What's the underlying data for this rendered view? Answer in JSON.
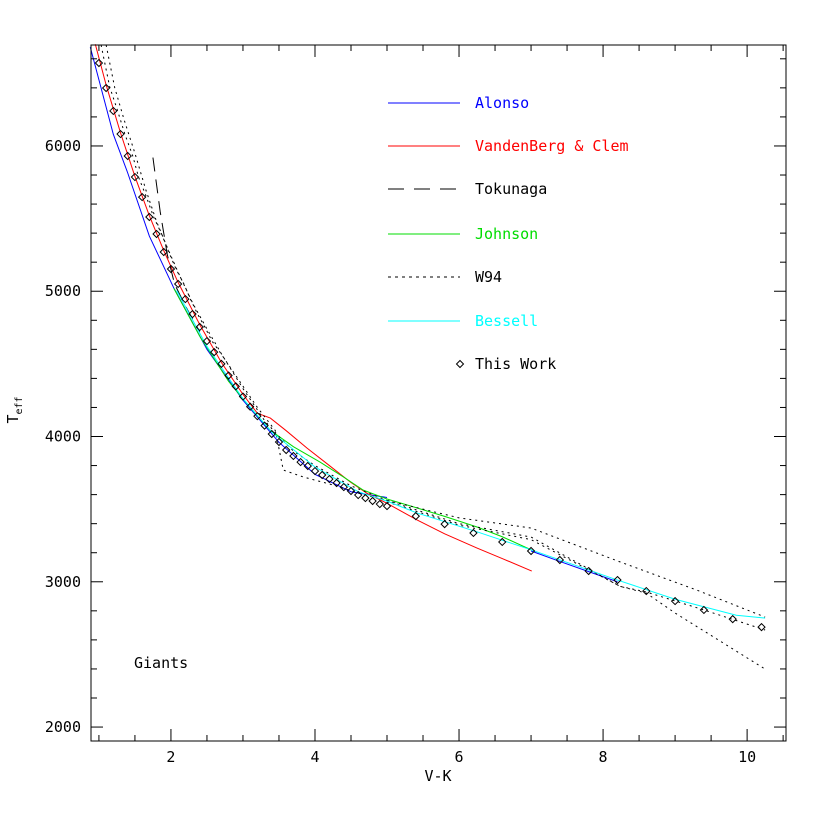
{
  "chart_data": {
    "type": "line",
    "title": "",
    "xlabel": "V-K",
    "ylabel": "T",
    "ylabel_sub": "eff",
    "annotation": "Giants",
    "xlim": [
      0.89,
      10.54
    ],
    "ylim": [
      1904,
      6695
    ],
    "x_ticks": [
      "2",
      "4",
      "6",
      "8",
      "10"
    ],
    "y_ticks": [
      "2000",
      "3000",
      "4000",
      "5000",
      "6000"
    ],
    "grid": false,
    "legend_position": "top-right",
    "series": [
      {
        "name": "Alonso",
        "color": "#0000ff",
        "style": "solid",
        "segments": [
          [
            [
              0.88,
              6680
            ],
            [
              1.2,
              6080
            ],
            [
              1.4,
              5814
            ],
            [
              1.7,
              5380
            ],
            [
              2.04,
              5022
            ],
            [
              2.5,
              4600
            ],
            [
              3.0,
              4250
            ],
            [
              3.5,
              3960
            ],
            [
              4.0,
              3740
            ],
            [
              4.5,
              3620
            ],
            [
              5.0,
              3580
            ]
          ],
          [
            [
              7.0,
              3212
            ],
            [
              7.4,
              3140
            ],
            [
              7.8,
              3070
            ],
            [
              8.2,
              3000
            ]
          ]
        ]
      },
      {
        "name": "VandenBerg & Clem",
        "color": "#ff0000",
        "style": "solid",
        "segments": [
          [
            [
              0.95,
              6700
            ],
            [
              1.1,
              6420
            ],
            [
              1.3,
              6090
            ],
            [
              1.5,
              5790
            ],
            [
              1.7,
              5520
            ],
            [
              1.9,
              5280
            ],
            [
              2.1,
              5060
            ],
            [
              2.4,
              4770
            ],
            [
              2.7,
              4510
            ],
            [
              3.0,
              4290
            ],
            [
              3.2,
              4160
            ],
            [
              3.38,
              4127
            ],
            [
              3.6,
              4040
            ],
            [
              3.89,
              3920
            ],
            [
              4.2,
              3800
            ],
            [
              4.49,
              3687
            ],
            [
              4.72,
              3610
            ],
            [
              5.0,
              3540
            ],
            [
              5.42,
              3425
            ],
            [
              5.8,
              3330
            ],
            [
              6.25,
              3232
            ],
            [
              6.6,
              3160
            ],
            [
              7.01,
              3074
            ]
          ]
        ]
      },
      {
        "name": "Tokunaga",
        "color": "#000000",
        "style": "dashed",
        "segments": [
          [
            [
              1.75,
              5920
            ],
            [
              1.85,
              5550
            ],
            [
              1.95,
              5250
            ],
            [
              2.05,
              5050
            ],
            [
              2.2,
              4900
            ],
            [
              2.4,
              4720
            ]
          ]
        ]
      },
      {
        "name": "Johnson",
        "color": "#00dd00",
        "style": "solid",
        "segments": [
          [
            [
              2.04,
              5020
            ],
            [
              2.4,
              4690
            ],
            [
              2.8,
              4380
            ],
            [
              3.1,
              4200
            ],
            [
              3.375,
              4045
            ],
            [
              3.7,
              3930
            ],
            [
              4.07,
              3824
            ],
            [
              4.4,
              3720
            ],
            [
              4.67,
              3631
            ],
            [
              5.0,
              3570
            ],
            [
              5.42,
              3508
            ],
            [
              5.8,
              3450
            ],
            [
              6.25,
              3377
            ],
            [
              6.6,
              3310
            ],
            [
              7.01,
              3218
            ]
          ]
        ]
      },
      {
        "name": "W94",
        "color": "#000000",
        "style": "dotted",
        "segments": [
          [
            [
              1.03,
              6695
            ],
            [
              1.15,
              6406
            ],
            [
              1.26,
              6241
            ],
            [
              1.36,
              6082
            ],
            [
              1.47,
              5931
            ],
            [
              1.55,
              5786
            ],
            [
              1.66,
              5648
            ],
            [
              1.76,
              5511
            ],
            [
              1.87,
              5394
            ],
            [
              1.97,
              5270
            ],
            [
              2.07,
              5153
            ],
            [
              2.18,
              5050
            ],
            [
              2.27,
              4946
            ],
            [
              2.37,
              4843
            ],
            [
              2.47,
              4754
            ],
            [
              2.57,
              4657
            ],
            [
              2.68,
              4581
            ],
            [
              2.9,
              4420
            ],
            [
              3.2,
              4200
            ],
            [
              3.45,
              4040
            ],
            [
              3.56,
              3769
            ],
            [
              3.84,
              3721
            ],
            [
              4.3,
              3660
            ],
            [
              4.6,
              3610
            ],
            [
              5.0,
              3560
            ],
            [
              6.0,
              3440
            ],
            [
              7.0,
              3370
            ],
            [
              8.24,
              3136
            ],
            [
              9.3,
              2943
            ],
            [
              10.25,
              2757
            ]
          ],
          [
            [
              1.1,
              6695
            ],
            [
              1.22,
              6400
            ],
            [
              1.35,
              6180
            ],
            [
              1.5,
              5950
            ],
            [
              1.65,
              5700
            ],
            [
              1.8,
              5480
            ],
            [
              1.95,
              5300
            ],
            [
              2.1,
              5130
            ],
            [
              2.3,
              4920
            ],
            [
              2.5,
              4740
            ],
            [
              2.7,
              4570
            ],
            [
              3.0,
              4330
            ],
            [
              3.3,
              4110
            ],
            [
              3.5,
              4000
            ],
            [
              3.7,
              3900
            ],
            [
              4.0,
              3800
            ],
            [
              4.5,
              3660
            ],
            [
              5.0,
              3560
            ],
            [
              6.0,
              3400
            ],
            [
              7.0,
              3308
            ],
            [
              8.24,
              2968
            ],
            [
              8.6,
              2930
            ],
            [
              9.4,
              2806
            ],
            [
              10.25,
              2668
            ]
          ],
          [
            [
              5.0,
              3550
            ],
            [
              6.0,
              3390
            ],
            [
              7.0,
              3290
            ],
            [
              8.24,
              2968
            ],
            [
              8.6,
              2922
            ],
            [
              9.0,
              2785
            ],
            [
              10.25,
              2399
            ]
          ]
        ]
      },
      {
        "name": "Bessell",
        "color": "#00ffff",
        "style": "solid",
        "segments": [
          [
            [
              2.08,
              5005
            ],
            [
              2.5,
              4620
            ],
            [
              3.0,
              4260
            ],
            [
              3.4,
              4030
            ],
            [
              4.0,
              3790
            ],
            [
              4.6,
              3620
            ],
            [
              5.0,
              3555
            ],
            [
              5.42,
              3473
            ],
            [
              6.25,
              3344
            ],
            [
              7.0,
              3220
            ],
            [
              8.2,
              3012
            ],
            [
              9.0,
              2880
            ],
            [
              9.85,
              2770
            ],
            [
              10.25,
              2750
            ]
          ]
        ]
      },
      {
        "name": "This Work",
        "color": "#000000",
        "style": "diamond",
        "points": [
          [
            1.0,
            6571
          ],
          [
            1.1,
            6399
          ],
          [
            1.2,
            6241
          ],
          [
            1.3,
            6082
          ],
          [
            1.4,
            5931
          ],
          [
            1.5,
            5786
          ],
          [
            1.6,
            5648
          ],
          [
            1.7,
            5511
          ],
          [
            1.8,
            5394
          ],
          [
            1.9,
            5270
          ],
          [
            2.0,
            5153
          ],
          [
            2.1,
            5050
          ],
          [
            2.2,
            4946
          ],
          [
            2.3,
            4843
          ],
          [
            2.4,
            4754
          ],
          [
            2.5,
            4657
          ],
          [
            2.6,
            4581
          ],
          [
            2.7,
            4500
          ],
          [
            2.8,
            4420
          ],
          [
            2.9,
            4345
          ],
          [
            3.0,
            4275
          ],
          [
            3.1,
            4205
          ],
          [
            3.2,
            4140
          ],
          [
            3.3,
            4075
          ],
          [
            3.4,
            4017
          ],
          [
            3.5,
            3962
          ],
          [
            3.6,
            3907
          ],
          [
            3.7,
            3866
          ],
          [
            3.8,
            3824
          ],
          [
            3.9,
            3797
          ],
          [
            4.0,
            3762
          ],
          [
            4.1,
            3735
          ],
          [
            4.2,
            3707
          ],
          [
            4.3,
            3680
          ],
          [
            4.4,
            3652
          ],
          [
            4.5,
            3625
          ],
          [
            4.6,
            3597
          ],
          [
            4.7,
            3576
          ],
          [
            4.8,
            3556
          ],
          [
            4.9,
            3535
          ],
          [
            5.0,
            3521
          ],
          [
            5.4,
            3452
          ],
          [
            5.8,
            3397
          ],
          [
            6.2,
            3336
          ],
          [
            6.6,
            3274
          ],
          [
            7.0,
            3212
          ],
          [
            7.4,
            3150
          ],
          [
            7.8,
            3074
          ],
          [
            8.2,
            3012
          ],
          [
            8.6,
            2936
          ],
          [
            9.0,
            2867
          ],
          [
            9.4,
            2806
          ],
          [
            9.8,
            2743
          ],
          [
            10.2,
            2688
          ]
        ]
      }
    ]
  }
}
